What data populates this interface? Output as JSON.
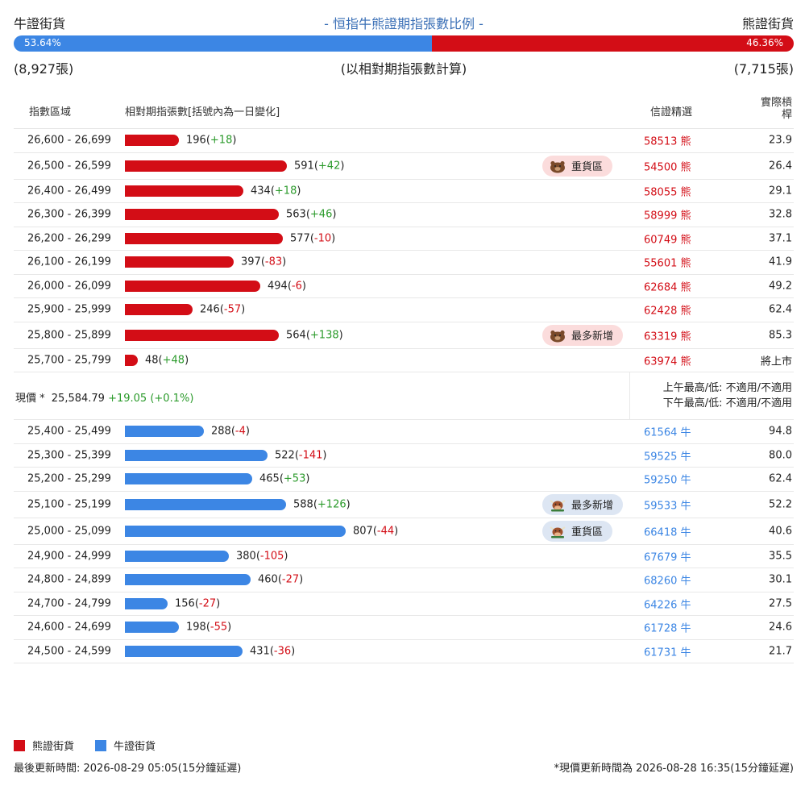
{
  "header": {
    "bull_title": "牛證街貨",
    "bear_title": "熊證街貨",
    "chart_title": "- 恒指牛熊證期指張數比例 -",
    "bull_pct": "53.64%",
    "bear_pct": "46.36%",
    "bull_ratio": 53.64,
    "bull_count": "(8,927張)",
    "bear_count": "(7,715張)",
    "note": "(以相對期指張數計算)"
  },
  "table_head": {
    "range": "指數區域",
    "contracts": "相對期指張數[括號內為一日變化]",
    "warrant": "信證精選",
    "gearing_1": "實際槓",
    "gearing_2": "桿"
  },
  "bear_rows": [
    {
      "range": "26,600 - 26,699",
      "value": 196,
      "qty": "196",
      "chg": "+18",
      "warrant": "58513 熊",
      "gearing": "23.9",
      "tag": ""
    },
    {
      "range": "26,500 - 26,599",
      "value": 591,
      "qty": "591",
      "chg": "+42",
      "warrant": "54500 熊",
      "gearing": "26.4",
      "tag": "重貨區"
    },
    {
      "range": "26,400 - 26,499",
      "value": 434,
      "qty": "434",
      "chg": "+18",
      "warrant": "58055 熊",
      "gearing": "29.1",
      "tag": ""
    },
    {
      "range": "26,300 - 26,399",
      "value": 563,
      "qty": "563",
      "chg": "+46",
      "warrant": "58999 熊",
      "gearing": "32.8",
      "tag": ""
    },
    {
      "range": "26,200 - 26,299",
      "value": 577,
      "qty": "577",
      "chg": "-10",
      "warrant": "60749 熊",
      "gearing": "37.1",
      "tag": ""
    },
    {
      "range": "26,100 - 26,199",
      "value": 397,
      "qty": "397",
      "chg": "-83",
      "warrant": "55601 熊",
      "gearing": "41.9",
      "tag": ""
    },
    {
      "range": "26,000 - 26,099",
      "value": 494,
      "qty": "494",
      "chg": "-6",
      "warrant": "62684 熊",
      "gearing": "49.2",
      "tag": ""
    },
    {
      "range": "25,900 - 25,999",
      "value": 246,
      "qty": "246",
      "chg": "-57",
      "warrant": "62428 熊",
      "gearing": "62.4",
      "tag": ""
    },
    {
      "range": "25,800 - 25,899",
      "value": 564,
      "qty": "564",
      "chg": "+138",
      "warrant": "63319 熊",
      "gearing": "85.3",
      "tag": "最多新增"
    },
    {
      "range": "25,700 - 25,799",
      "value": 48,
      "qty": "48",
      "chg": "+48",
      "warrant": "63974 熊",
      "gearing": "將上市",
      "tag": ""
    }
  ],
  "spot": {
    "label": "現價 *",
    "price": "25,584.79",
    "change": "+19.05 (+0.1%)",
    "am_line": "上午最高/低: 不適用/不適用",
    "pm_line": "下午最高/低: 不適用/不適用"
  },
  "bull_rows": [
    {
      "range": "25,400 - 25,499",
      "value": 288,
      "qty": "288",
      "chg": "-4",
      "warrant": "61564 牛",
      "gearing": "94.8",
      "tag": ""
    },
    {
      "range": "25,300 - 25,399",
      "value": 522,
      "qty": "522",
      "chg": "-141",
      "warrant": "59525 牛",
      "gearing": "80.0",
      "tag": ""
    },
    {
      "range": "25,200 - 25,299",
      "value": 465,
      "qty": "465",
      "chg": "+53",
      "warrant": "59250 牛",
      "gearing": "62.4",
      "tag": ""
    },
    {
      "range": "25,100 - 25,199",
      "value": 588,
      "qty": "588",
      "chg": "+126",
      "warrant": "59533 牛",
      "gearing": "52.2",
      "tag": "最多新增"
    },
    {
      "range": "25,000 - 25,099",
      "value": 807,
      "qty": "807",
      "chg": "-44",
      "warrant": "66418 牛",
      "gearing": "40.6",
      "tag": "重貨區"
    },
    {
      "range": "24,900 - 24,999",
      "value": 380,
      "qty": "380",
      "chg": "-105",
      "warrant": "67679 牛",
      "gearing": "35.5",
      "tag": ""
    },
    {
      "range": "24,800 - 24,899",
      "value": 460,
      "qty": "460",
      "chg": "-27",
      "warrant": "68260 牛",
      "gearing": "30.1",
      "tag": ""
    },
    {
      "range": "24,700 - 24,799",
      "value": 156,
      "qty": "156",
      "chg": "-27",
      "warrant": "64226 牛",
      "gearing": "27.5",
      "tag": ""
    },
    {
      "range": "24,600 - 24,699",
      "value": 198,
      "qty": "198",
      "chg": "-55",
      "warrant": "61728 牛",
      "gearing": "24.6",
      "tag": ""
    },
    {
      "range": "24,500 - 24,599",
      "value": 431,
      "qty": "431",
      "chg": "-36",
      "warrant": "61731 牛",
      "gearing": "21.7",
      "tag": ""
    }
  ],
  "legend": {
    "bear_label": "熊證街貨",
    "bull_label": "牛證街貨",
    "bear_color": "#d30d16",
    "bull_color": "#3c86e4"
  },
  "footer": {
    "updated": "最後更新時間: 2026-08-29 05:05(15分鐘延遲)",
    "spot_updated": "*現價更新時間為 2026-08-28 16:35(15分鐘延遲)"
  },
  "icons": {
    "bear_tag_icon": "bear-icon",
    "bull_tag_icon": "bull-icon"
  }
}
